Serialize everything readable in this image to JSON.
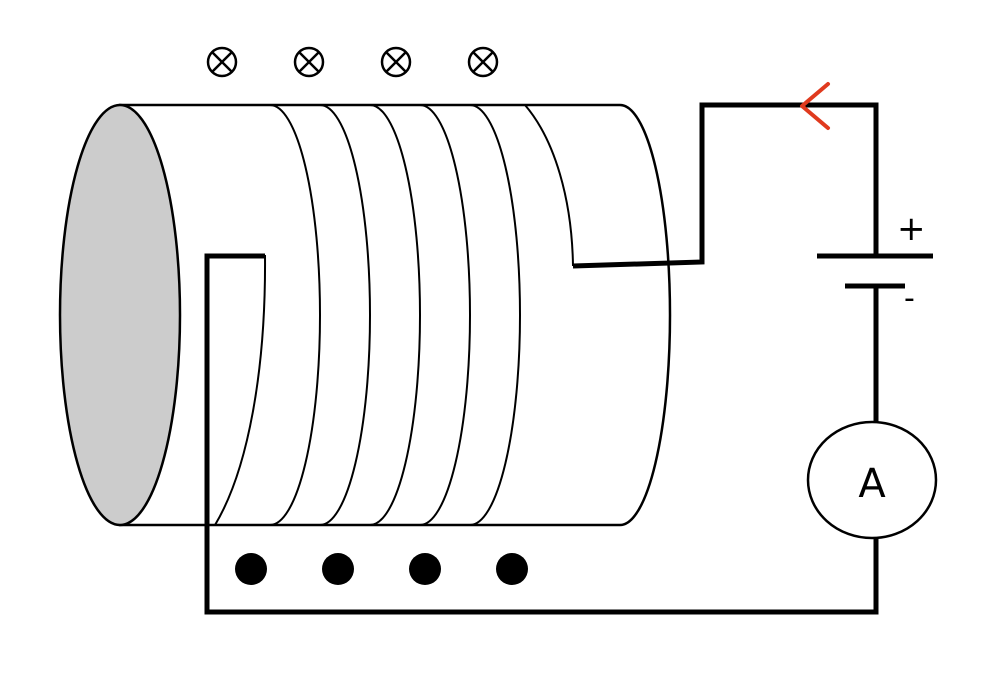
{
  "battery": {
    "positive_label": "+",
    "negative_label": "-"
  },
  "ammeter": {
    "label": "A"
  },
  "current_arrow": {
    "color": "#e03a1e"
  },
  "field_markers": {
    "into_page_count": 4,
    "out_of_page_count": 4
  }
}
